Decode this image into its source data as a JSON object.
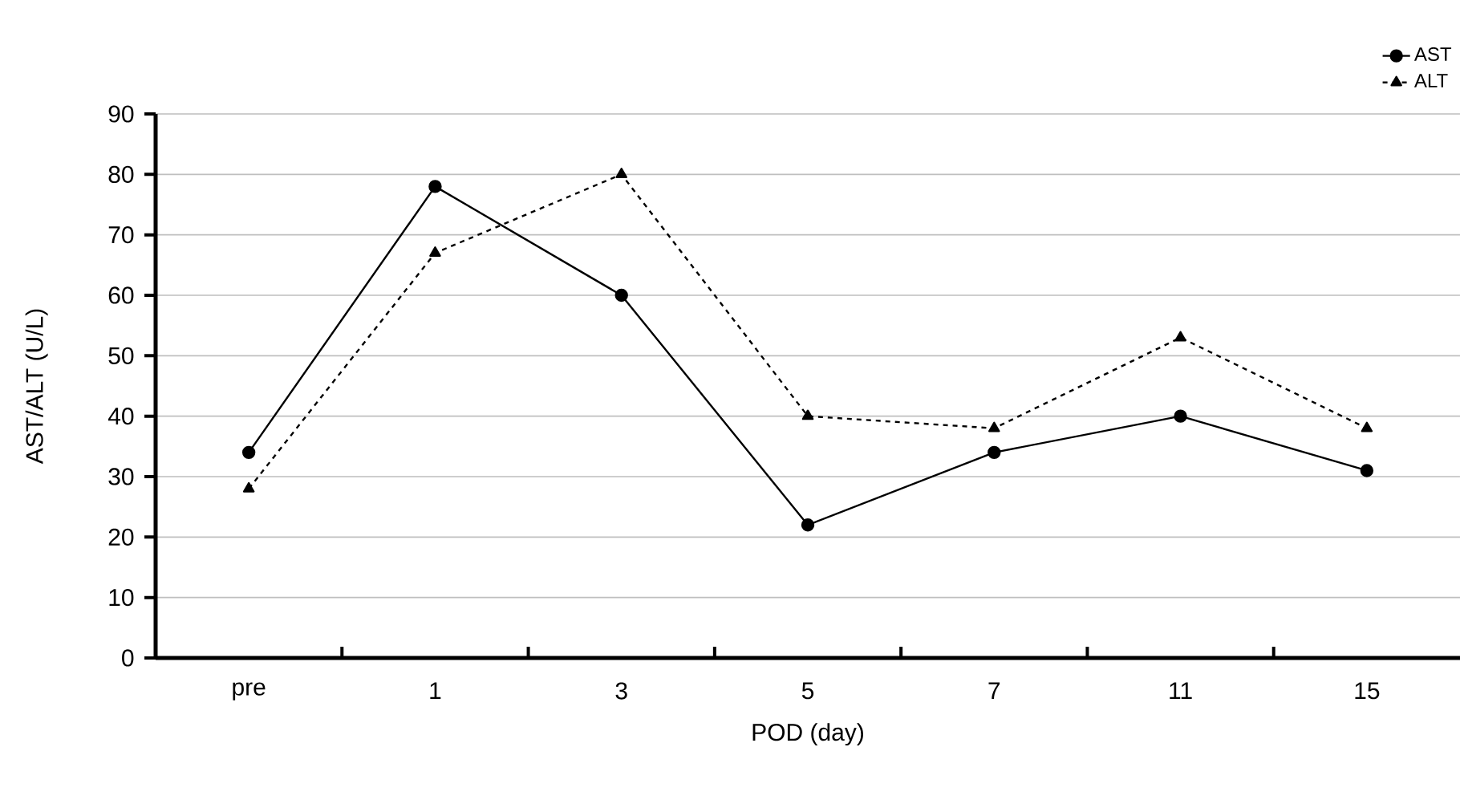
{
  "chart_data": {
    "type": "line",
    "xlabel": "POD (day)",
    "ylabel": "AST/ALT (U/L)",
    "categories": [
      "pre",
      "1",
      "3",
      "5",
      "7",
      "11",
      "15"
    ],
    "series": [
      {
        "name": "AST",
        "color": "#000000",
        "marker": "circle",
        "line_style": "solid",
        "values": [
          34,
          78,
          60,
          22,
          34,
          40,
          31
        ]
      },
      {
        "name": "ALT",
        "color": "#000000",
        "marker": "triangle",
        "line_style": "dashed",
        "values": [
          28,
          67,
          80,
          40,
          38,
          53,
          38
        ]
      }
    ],
    "ylim": [
      0,
      90
    ],
    "yticks": [
      0,
      10,
      20,
      30,
      40,
      50,
      60,
      70,
      80,
      90
    ],
    "grid": "y",
    "legend": "top right"
  }
}
